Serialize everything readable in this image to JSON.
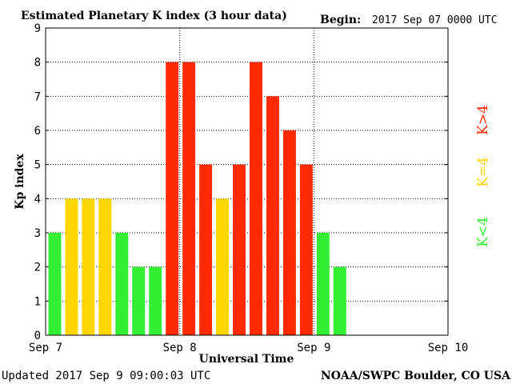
{
  "header": {
    "title": "Estimated Planetary K index (3 hour data)",
    "begin_label": "Begin:",
    "begin_value": "2017 Sep 07 0000 UTC"
  },
  "footer": {
    "updated": "Updated 2017 Sep  9 09:00:03 UTC",
    "credit": "NOAA/SWPC Boulder, CO USA"
  },
  "legend": {
    "low": {
      "label": "K<4",
      "color": "#33ee33"
    },
    "mid": {
      "label": "K=4",
      "color": "#ffd700"
    },
    "high": {
      "label": "K>4",
      "color": "#ff2a00"
    }
  },
  "chart_data": {
    "type": "bar",
    "title": "Estimated Planetary K index (3 hour data)",
    "xlabel": "Universal Time",
    "ylabel": "Kp index",
    "ylim": [
      0,
      9
    ],
    "yticks": [
      "0",
      "1",
      "2",
      "3",
      "4",
      "5",
      "6",
      "7",
      "8",
      "9"
    ],
    "xticks": [
      "Sep 7",
      "Sep 8",
      "Sep 9",
      "Sep 10"
    ],
    "bars_per_day": 8,
    "days": 3,
    "grid": true,
    "values": [
      3,
      4,
      4,
      4,
      3,
      2,
      2,
      8,
      8,
      5,
      4,
      5,
      8,
      7,
      6,
      5,
      3,
      2
    ],
    "color_thresholds": {
      "below": "#33ee33",
      "equal": "#ffd700",
      "above": "#ff2a00",
      "level": 4
    }
  }
}
